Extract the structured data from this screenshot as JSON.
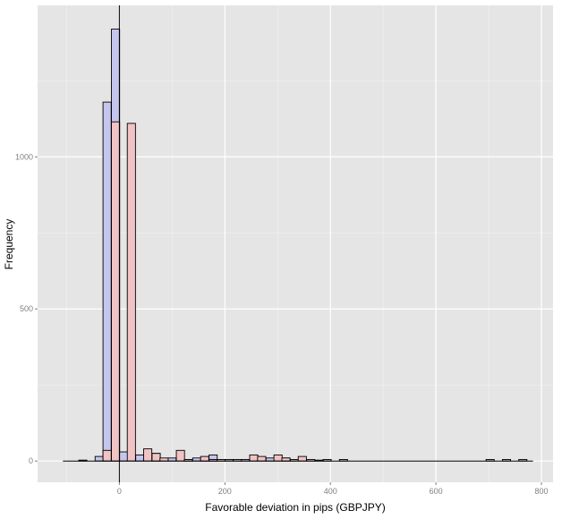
{
  "chart_data": {
    "type": "bar",
    "title": "",
    "xlabel": "Favorable deviation in pips (GBPJPY)",
    "ylabel": "Frequency",
    "xlim": [
      -155,
      822
    ],
    "ylim": [
      -70,
      1498
    ],
    "x_ticks": [
      0,
      200,
      400,
      600,
      800
    ],
    "x_tick_labels": [
      "0",
      "200",
      "400",
      "600",
      "800"
    ],
    "y_ticks": [
      0,
      500,
      1000
    ],
    "y_tick_labels": [
      "0",
      "500",
      "1000"
    ],
    "grid": true,
    "vline_x": 0,
    "baseline_range": [
      -107,
      784
    ],
    "legend": "none",
    "colors": {
      "panel": "#e5e5e5",
      "grid_major": "#ffffff",
      "grid_minor": "#f2f2f2",
      "series_a": "#c5c6ee",
      "series_b": "#f1c3c4",
      "bar_outline": "#000000"
    },
    "bin_width": 15.5,
    "series": [
      {
        "x": [
          -77,
          -46,
          -31,
          -15,
          0,
          31,
          62,
          92,
          123,
          139,
          154,
          170,
          200,
          231,
          278,
          308,
          386,
          417,
          695,
          726,
          757
        ],
        "values": [
          3,
          15,
          1180,
          1420,
          30,
          20,
          25,
          10,
          5,
          10,
          5,
          20,
          5,
          5,
          10,
          10,
          5,
          5,
          5,
          5,
          5
        ]
      },
      {
        "x": [
          -31,
          -15,
          15,
          46,
          62,
          77,
          108,
          123,
          154,
          170,
          185,
          216,
          247,
          262,
          293,
          308,
          324,
          339,
          355,
          371
        ],
        "values": [
          35,
          1115,
          1110,
          40,
          25,
          10,
          35,
          5,
          15,
          5,
          5,
          5,
          20,
          15,
          20,
          10,
          5,
          15,
          5,
          3
        ]
      }
    ]
  }
}
